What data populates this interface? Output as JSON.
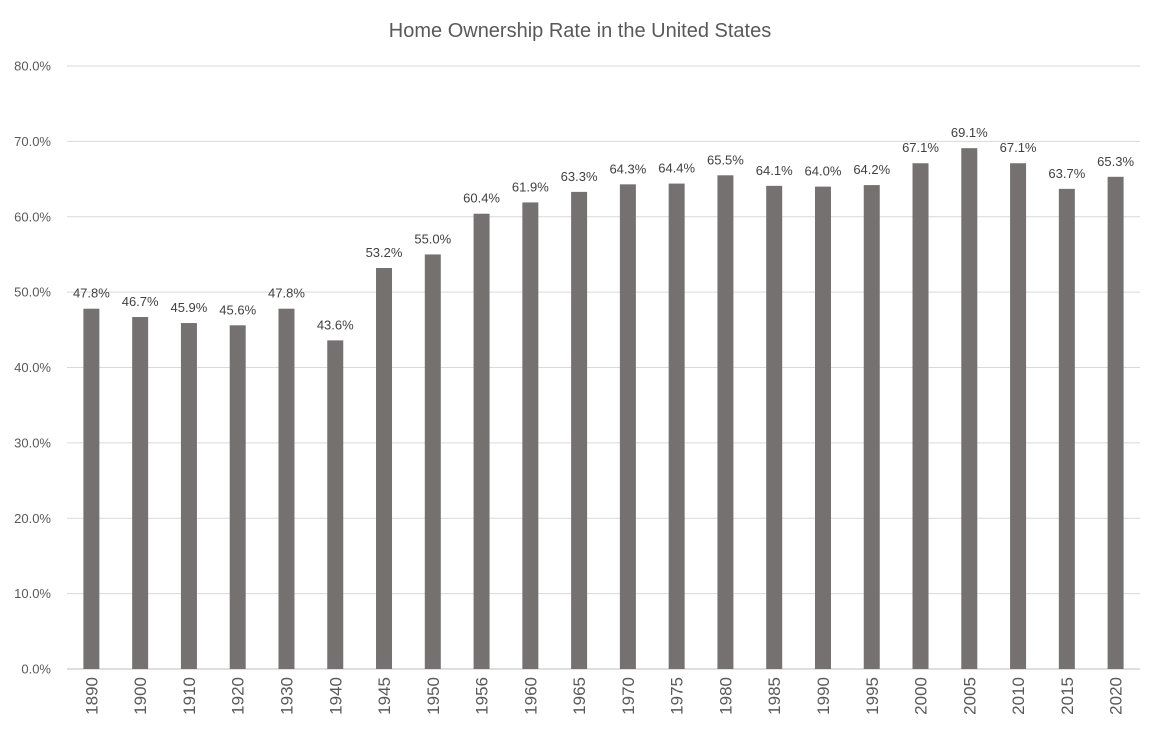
{
  "chart_data": {
    "type": "bar",
    "title": "Home Ownership Rate in the United States",
    "xlabel": "",
    "ylabel": "",
    "categories": [
      "1890",
      "1900",
      "1910",
      "1920",
      "1930",
      "1940",
      "1945",
      "1950",
      "1956",
      "1960",
      "1965",
      "1970",
      "1975",
      "1980",
      "1985",
      "1990",
      "1995",
      "2000",
      "2005",
      "2010",
      "2015",
      "2020"
    ],
    "values": [
      47.8,
      46.7,
      45.9,
      45.6,
      47.8,
      43.6,
      53.2,
      55.0,
      60.4,
      61.9,
      63.3,
      64.3,
      64.4,
      65.5,
      64.1,
      64.0,
      64.2,
      67.1,
      69.1,
      67.1,
      63.7,
      65.3
    ],
    "data_labels": [
      "47.8%",
      "46.7%",
      "45.9%",
      "45.6%",
      "47.8%",
      "43.6%",
      "53.2%",
      "55.0%",
      "60.4%",
      "61.9%",
      "63.3%",
      "64.3%",
      "64.4%",
      "65.5%",
      "64.1%",
      "64.0%",
      "64.2%",
      "67.1%",
      "69.1%",
      "67.1%",
      "63.7%",
      "65.3%"
    ],
    "ylim": [
      0,
      80
    ],
    "yticks": [
      0,
      10,
      20,
      30,
      40,
      50,
      60,
      70,
      80
    ],
    "ytick_labels": [
      "0.0%",
      "10.0%",
      "20.0%",
      "30.0%",
      "40.0%",
      "50.0%",
      "60.0%",
      "70.0%",
      "80.0%"
    ],
    "grid": true,
    "legend": "none",
    "bar_color": "#767171",
    "grid_color": "#d9d9d9"
  }
}
